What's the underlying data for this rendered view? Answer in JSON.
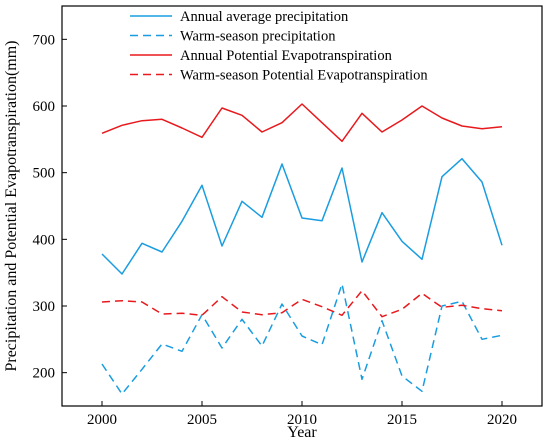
{
  "chart_data": {
    "type": "line",
    "title": "",
    "xlabel": "Year",
    "ylabel": "Precipitation and Potential Evapotranspiration(mm)",
    "xlim": [
      1998,
      2022
    ],
    "ylim": [
      150,
      750
    ],
    "xticks": [
      2000,
      2005,
      2010,
      2015,
      2020
    ],
    "yticks": [
      200,
      300,
      400,
      500,
      600,
      700
    ],
    "grid": false,
    "legend_position": "top",
    "x": [
      2000,
      2001,
      2002,
      2003,
      2004,
      2005,
      2006,
      2007,
      2008,
      2009,
      2010,
      2011,
      2012,
      2013,
      2014,
      2015,
      2016,
      2017,
      2018,
      2019,
      2020
    ],
    "series": [
      {
        "name": "Annual average precipitation",
        "color": "#1a9de0",
        "dash": "solid",
        "values": [
          378,
          348,
          394,
          381,
          427,
          481,
          390,
          457,
          433,
          513,
          432,
          428,
          507,
          366,
          440,
          397,
          370,
          494,
          521,
          486,
          391
        ]
      },
      {
        "name": "Warm-season precipitation",
        "color": "#1a9de0",
        "dash": "dashed",
        "values": [
          213,
          168,
          205,
          243,
          232,
          287,
          237,
          280,
          240,
          303,
          255,
          242,
          333,
          190,
          278,
          195,
          172,
          300,
          307,
          250,
          256
        ]
      },
      {
        "name": "Annual Potential Evapotranspiration",
        "color": "#e8191d",
        "dash": "solid",
        "values": [
          559,
          571,
          578,
          580,
          567,
          553,
          597,
          586,
          561,
          575,
          603,
          575,
          547,
          589,
          561,
          579,
          600,
          582,
          570,
          566,
          569
        ]
      },
      {
        "name": "Warm-season Potential Evapotranspiration",
        "color": "#e8191d",
        "dash": "dashed",
        "values": [
          306,
          308,
          306,
          288,
          289,
          286,
          314,
          291,
          287,
          290,
          310,
          299,
          286,
          323,
          284,
          295,
          319,
          298,
          301,
          296,
          293
        ]
      }
    ]
  }
}
